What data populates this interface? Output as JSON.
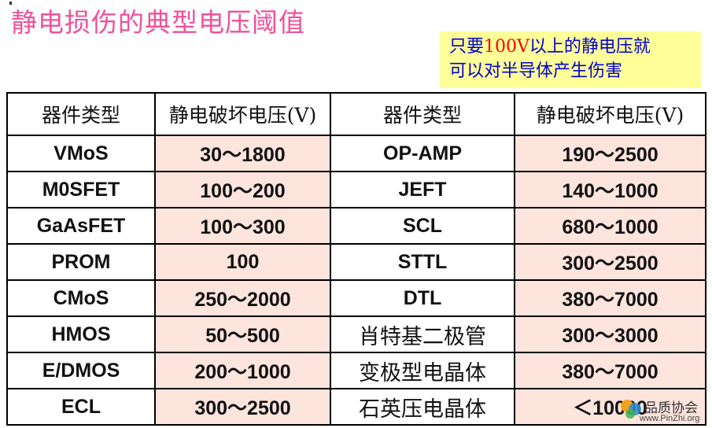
{
  "title": "静电损伤的典型电压阈值",
  "note": {
    "line1_prefix": "只要",
    "line1_highlight": "100V",
    "line1_suffix": "以上的静电压就",
    "line2": "可以对半导体产生伤害"
  },
  "table": {
    "headers": [
      "器件类型",
      "静电破坏电压(V)",
      "器件类型",
      "静电破坏电压(V)"
    ],
    "rows": [
      [
        "VMoS",
        "30～1800",
        "OP-AMP",
        "190～2500"
      ],
      [
        "M0SFET",
        "100～200",
        "JEFT",
        "140～1000"
      ],
      [
        "GaAsFET",
        "100～300",
        "SCL",
        "680～1000"
      ],
      [
        "PROM",
        "100",
        "STTL",
        "300～2500"
      ],
      [
        "CMoS",
        "250～2000",
        "DTL",
        "380～7000"
      ],
      [
        "HMOS",
        "50～500",
        "肖特基二极管",
        "300～3000"
      ],
      [
        "E/DMOS",
        "200～1000",
        "变极型电晶体",
        "380～7000"
      ],
      [
        "ECL",
        "300～2500",
        "石英压电晶体",
        "＜10000"
      ]
    ]
  },
  "watermark": {
    "name": "品质协会",
    "url": "www.PinZhi.org"
  },
  "colors": {
    "title": "#f0509b",
    "note_bg": "#ffff99",
    "note_text": "#0000cc",
    "note_highlight": "#ff0000",
    "value_cell_bg": "#fde4dc"
  }
}
